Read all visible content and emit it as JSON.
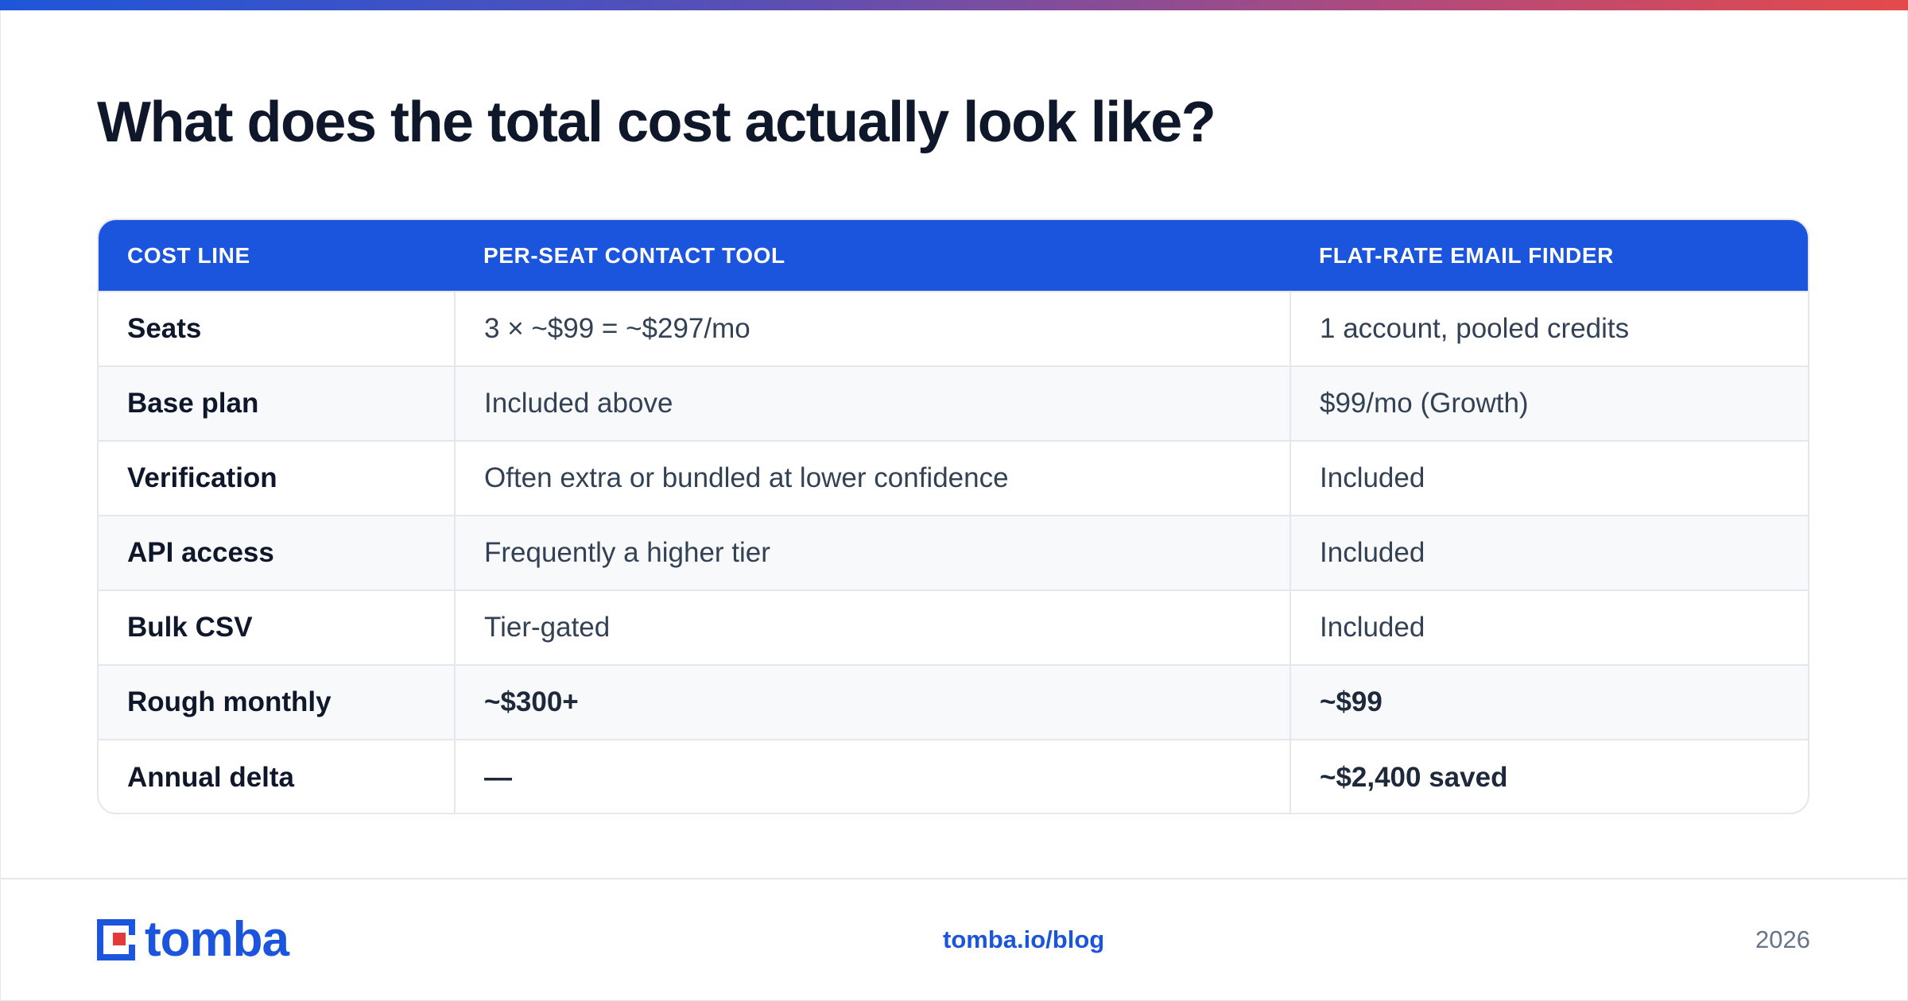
{
  "title": "What does the total cost actually look like?",
  "table": {
    "headers": [
      "COST LINE",
      "PER-SEAT CONTACT TOOL",
      "FLAT-RATE EMAIL FINDER"
    ],
    "rows": [
      {
        "line": "Seats",
        "per_seat": "3 × ~$99 = ~$297/mo",
        "flat_rate": "1 account, pooled credits"
      },
      {
        "line": "Base plan",
        "per_seat": "Included above",
        "flat_rate": "$99/mo (Growth)"
      },
      {
        "line": "Verification",
        "per_seat": "Often extra or bundled at lower confidence",
        "flat_rate": "Included"
      },
      {
        "line": "API access",
        "per_seat": "Frequently a higher tier",
        "flat_rate": "Included"
      },
      {
        "line": "Bulk CSV",
        "per_seat": "Tier-gated",
        "flat_rate": "Included"
      },
      {
        "line": "Rough monthly",
        "per_seat": "~$300+",
        "flat_rate": "~$99"
      },
      {
        "line": "Annual delta",
        "per_seat": "—",
        "flat_rate": "~$2,400 saved"
      }
    ]
  },
  "footer": {
    "logo_text": "tomba",
    "link": "tomba.io/blog",
    "year": "2026"
  },
  "colors": {
    "accent": "#1b54dd",
    "logo_red": "#e03a3a",
    "gradient_start": "#1e56d9",
    "gradient_end": "#e44a4a"
  },
  "icons": {
    "logo_mark": "tomba-logo-icon"
  }
}
